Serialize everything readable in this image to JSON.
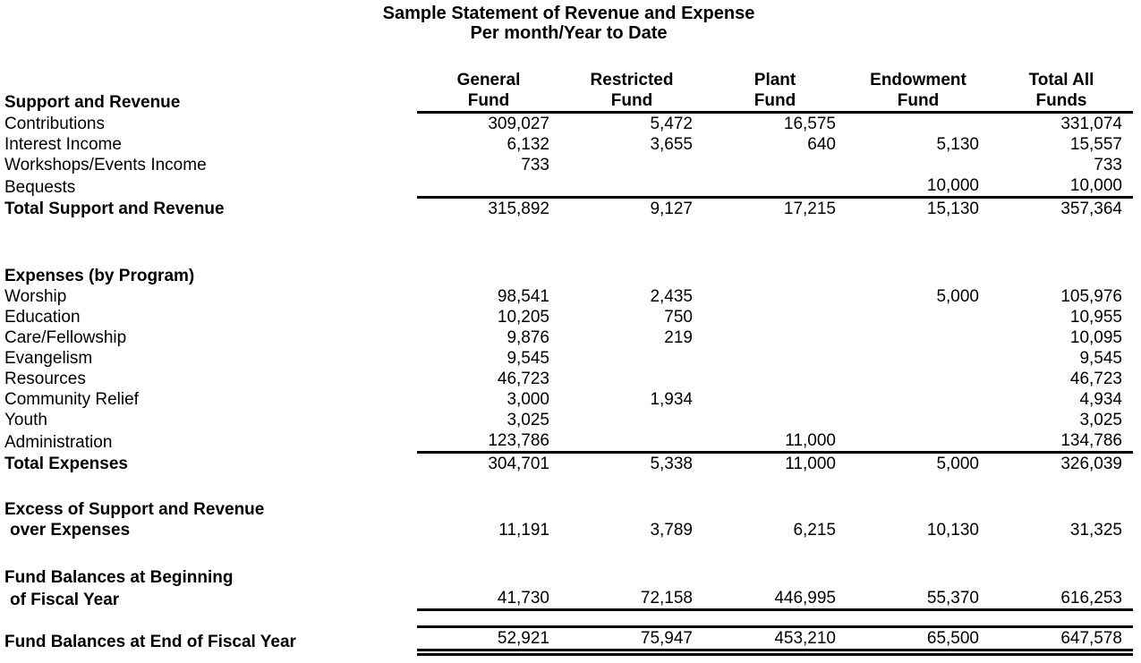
{
  "colors": {
    "text": "#000000",
    "background": "#ffffff"
  },
  "title": {
    "line1": "Sample Statement of Revenue and Expense",
    "line2": "Per month/Year to Date"
  },
  "table": {
    "header": {
      "section_label": "Support and Revenue",
      "row1": [
        "General",
        "Restricted",
        "Plant",
        "Endowment",
        "Total All"
      ],
      "row2": [
        "Fund",
        "Fund",
        "Fund",
        "Fund",
        "Funds"
      ]
    },
    "rows": [
      {
        "label": "Contributions",
        "values": [
          "309,027",
          "5,472",
          "16,575",
          "",
          "331,074"
        ]
      },
      {
        "label": "Interest Income",
        "values": [
          "6,132",
          "3,655",
          "640",
          "5,130",
          "15,557"
        ]
      },
      {
        "label": "Workshops/Events Income",
        "values": [
          "733",
          "",
          "",
          "",
          "733"
        ]
      },
      {
        "label": "Bequests",
        "values": [
          "",
          "",
          "",
          "10,000",
          "10,000"
        ],
        "rule": "rb"
      },
      {
        "label": "Total Support and Revenue",
        "bold": true,
        "values": [
          "315,892",
          "9,127",
          "17,215",
          "15,130",
          "357,364"
        ]
      },
      {
        "spacer": 52
      },
      {
        "label": "Expenses (by Program)",
        "bold": true,
        "values": [
          "",
          "",
          "",
          "",
          ""
        ]
      },
      {
        "label": "Worship",
        "values": [
          "98,541",
          "2,435",
          "",
          "5,000",
          "105,976"
        ]
      },
      {
        "label": "Education",
        "values": [
          "10,205",
          "750",
          "",
          "",
          "10,955"
        ]
      },
      {
        "label": "Care/Fellowship",
        "values": [
          "9,876",
          "219",
          "",
          "",
          "10,095"
        ]
      },
      {
        "label": "Evangelism",
        "values": [
          "9,545",
          "",
          "",
          "",
          "9,545"
        ]
      },
      {
        "label": "Resources",
        "values": [
          "46,723",
          "",
          "",
          "",
          "46,723"
        ]
      },
      {
        "label": "Community Relief",
        "values": [
          "3,000",
          "1,934",
          "",
          "",
          "4,934"
        ]
      },
      {
        "label": "Youth",
        "values": [
          "3,025",
          "",
          "",
          "",
          "3,025"
        ]
      },
      {
        "label": "Administration",
        "values": [
          "123,786",
          "",
          "11,000",
          "",
          "134,786"
        ],
        "rule": "rb"
      },
      {
        "label": "Total Expenses",
        "bold": true,
        "values": [
          "304,701",
          "5,338",
          "11,000",
          "5,000",
          "326,039"
        ]
      },
      {
        "spacer": 28
      },
      {
        "label": "Excess of Support and Revenue",
        "bold": true,
        "values": [
          "",
          "",
          "",
          "",
          ""
        ]
      },
      {
        "label": "over Expenses",
        "bold": true,
        "indent": true,
        "values": [
          "11,191",
          "3,789",
          "6,215",
          "10,130",
          "31,325"
        ]
      },
      {
        "spacer": 30
      },
      {
        "label": "Fund Balances at Beginning",
        "bold": true,
        "values": [
          "",
          "",
          "",
          "",
          ""
        ]
      },
      {
        "label": "of Fiscal Year",
        "bold": true,
        "indent": true,
        "values": [
          "41,730",
          "72,158",
          "446,995",
          "55,370",
          "616,253"
        ],
        "rule": "rb"
      },
      {
        "spacer": 16
      },
      {
        "label": "Fund Balances at End of Fiscal Year",
        "bold": true,
        "values": [
          "52,921",
          "75,947",
          "453,210",
          "65,500",
          "647,578"
        ],
        "rule": "rt rbd"
      }
    ]
  }
}
